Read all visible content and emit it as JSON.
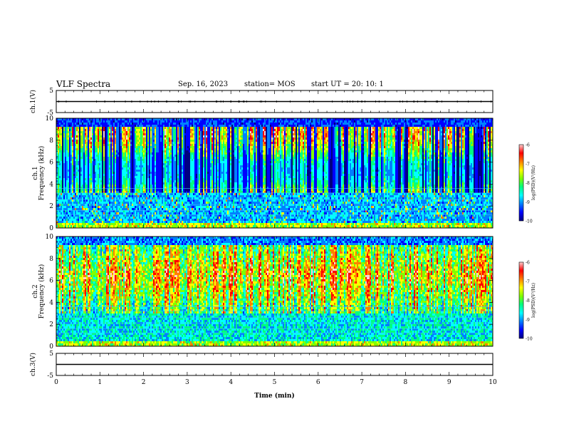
{
  "header": {
    "title": "VLF Spectra",
    "date": "Sep. 16, 2023",
    "station": "station= MOS",
    "start": "start  UT  =   20: 10: 1"
  },
  "colors": {
    "spectrogram_scale": [
      "#000080",
      "#0000ff",
      "#0080ff",
      "#00ffff",
      "#00ff80",
      "#80ff00",
      "#ffff00",
      "#ff8000",
      "#ff0000",
      "#ffd0d0"
    ]
  },
  "chart_data": [
    {
      "id": "ch1-voltage",
      "type": "line",
      "ylabel": "ch.1(V)",
      "ylim": [
        -5,
        5
      ],
      "yticks": [
        "5",
        "-5"
      ],
      "x": [
        0,
        10
      ],
      "values": [
        0,
        0
      ]
    },
    {
      "id": "ch1-spectrogram",
      "type": "heatmap",
      "ylabel": "ch.1\nFrequency (kHz)",
      "ylabel_lines": [
        "ch.1",
        "Frequency (kHz)"
      ],
      "ylim": [
        0,
        10
      ],
      "yticks": [
        "0",
        "2",
        "4",
        "6",
        "8",
        "10"
      ],
      "xlim": [
        0,
        10
      ],
      "colorbar": {
        "label": "log(PSD)(V²/Hz)",
        "range": [
          -10,
          -6
        ],
        "ticks": [
          "-6",
          "-7",
          "-8",
          "-9",
          "-10"
        ]
      }
    },
    {
      "id": "ch2-spectrogram",
      "type": "heatmap",
      "ylabel": "ch.2\nFrequency (kHz)",
      "ylabel_lines": [
        "ch.2",
        "Frequency (kHz)"
      ],
      "ylim": [
        0,
        10
      ],
      "yticks": [
        "0",
        "2",
        "4",
        "6",
        "8",
        "10"
      ],
      "xlim": [
        0,
        10
      ],
      "colorbar": {
        "label": "log(PSD)(V²/Hz)",
        "range": [
          -10,
          -6
        ],
        "ticks": [
          "-6",
          "-7",
          "-8",
          "-9",
          "-10"
        ]
      }
    },
    {
      "id": "ch3-voltage",
      "type": "line",
      "ylabel": "ch.3(V)",
      "ylim": [
        -5,
        5
      ],
      "yticks": [
        "5",
        "-5"
      ],
      "x": [
        0,
        10
      ],
      "values": [
        0,
        0
      ]
    }
  ],
  "xaxis": {
    "label": "Time  (min)",
    "range": [
      0,
      10
    ],
    "ticks": [
      "0",
      "1",
      "2",
      "3",
      "4",
      "5",
      "6",
      "7",
      "8",
      "9",
      "10"
    ]
  }
}
